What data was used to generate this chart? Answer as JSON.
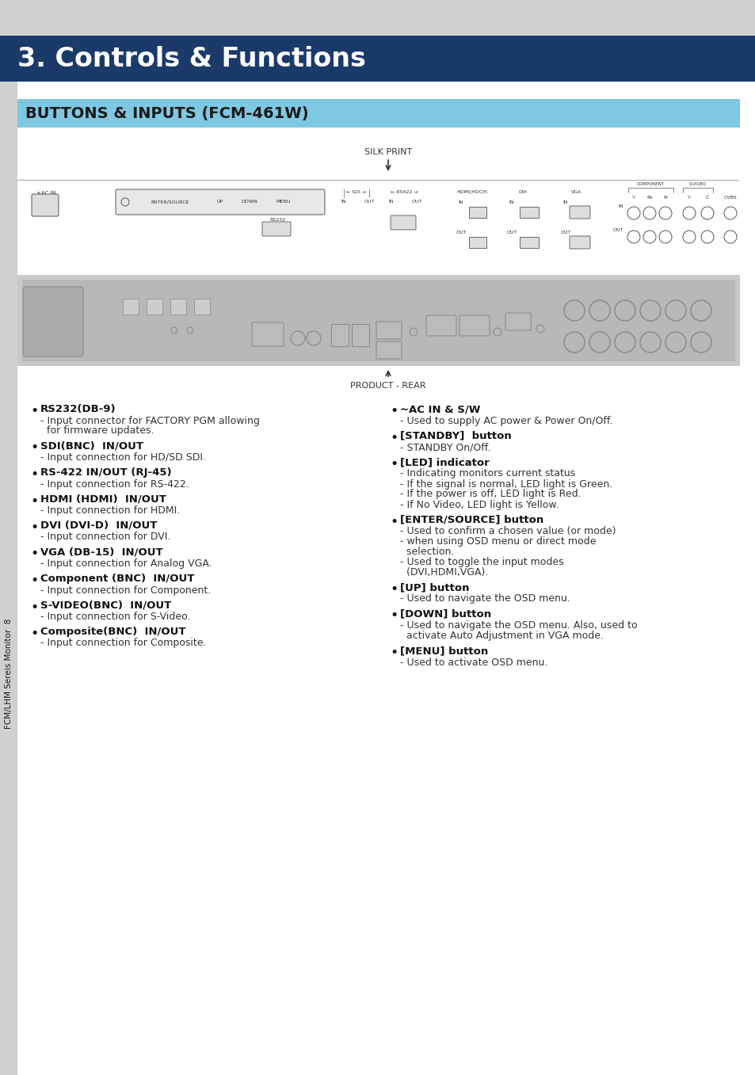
{
  "page_bg": "#ffffff",
  "top_bg": "#d0d0d0",
  "header_bg": "#1a3a6a",
  "header_text": "3. Controls & Functions",
  "header_text_color": "#ffffff",
  "subheader_bg": "#7ec8e3",
  "subheader_text": "BUTTONS & INPUTS (FCM-461W)",
  "subheader_text_color": "#1a1a1a",
  "sidebar_bg": "#d0d0d0",
  "sidebar_text": "FCM/LHM Sereis Monitor  8",
  "silk_print_label": "SILK PRINT",
  "product_rear_label": "PRODUCT - REAR",
  "left_column": [
    {
      "bullet": "RS232(DB-9)",
      "text1": "- Input connector for FACTORY PGM allowing",
      "text2": "  for firmware updates."
    },
    {
      "bullet": "SDI(BNC)  IN/OUT",
      "text1": "- Input connection for HD/SD SDI.",
      "text2": ""
    },
    {
      "bullet": "RS-422 IN/OUT (RJ-45)",
      "text1": "- Input connection for RS-422.",
      "text2": ""
    },
    {
      "bullet": "HDMI (HDMI)  IN/OUT",
      "text1": "- Input connection for HDMI.",
      "text2": ""
    },
    {
      "bullet": "DVI (DVI-D)  IN/OUT",
      "text1": "- Input connection for DVI.",
      "text2": ""
    },
    {
      "bullet": "VGA (DB-15)  IN/OUT",
      "text1": "- Input connection for Analog VGA.",
      "text2": ""
    },
    {
      "bullet": "Component (BNC)  IN/OUT",
      "text1": "- Input connection for Component.",
      "text2": ""
    },
    {
      "bullet": "S-VIDEO(BNC)  IN/OUT",
      "text1": "- Input connection for S-Video.",
      "text2": ""
    },
    {
      "bullet": "Composite(BNC)  IN/OUT",
      "text1": "- Input connection for Composite.",
      "text2": ""
    }
  ],
  "right_column": [
    {
      "bullet": "~AC IN & S/W",
      "text1": "- Used to supply AC power & Power On/Off.",
      "text2": ""
    },
    {
      "bullet": "[STANDBY]  button",
      "text1": "- STANDBY On/Off.",
      "text2": ""
    },
    {
      "bullet": "[LED] indicator",
      "text1": "- Indicating monitors current status",
      "text2": "- If the signal is normal, LED light is Green.\n- If the power is off, LED light is Red.\n- If No Video, LED light is Yellow."
    },
    {
      "bullet": "[ENTER/SOURCE] button",
      "text1": "- Used to confirm a chosen value (or mode)",
      "text2": "- when using OSD menu or direct mode\n  selection.\n- Used to toggle the input modes\n  (DVI,HDMI,VGA)."
    },
    {
      "bullet": "[UP] button",
      "text1": "- Used to navigate the OSD menu.",
      "text2": ""
    },
    {
      "bullet": "[DOWN] button",
      "text1": "- Used to navigate the OSD menu. Also, used to",
      "text2": "  activate Auto Adjustment in VGA mode."
    },
    {
      "bullet": "[MENU] button",
      "text1": "- Used to activate OSD menu.",
      "text2": ""
    }
  ]
}
